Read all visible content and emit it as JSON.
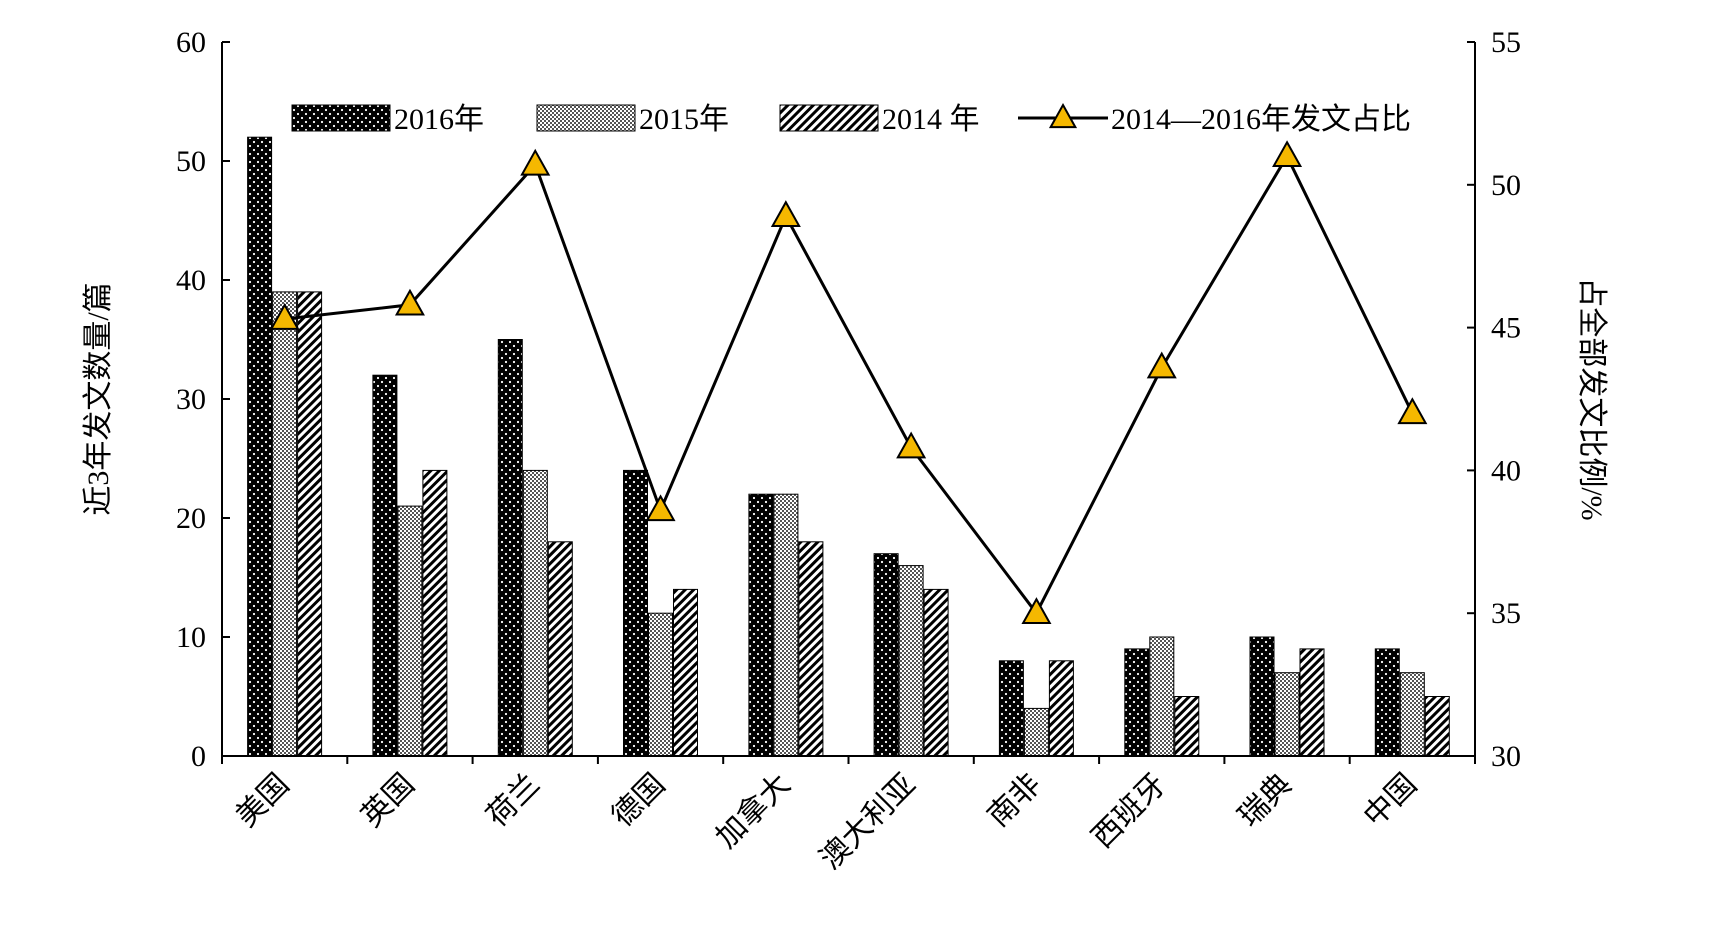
{
  "chart_data": {
    "type": "bar",
    "categories": [
      "美国",
      "英国",
      "荷兰",
      "德国",
      "加拿大",
      "澳大利亚",
      "南非",
      "西班牙",
      "瑞典",
      "中国"
    ],
    "series": [
      {
        "name": "2016年",
        "type": "bar",
        "axis": "left",
        "pattern": "dots",
        "values": [
          52,
          32,
          35,
          24,
          22,
          17,
          8,
          9,
          10,
          9
        ]
      },
      {
        "name": "2015年",
        "type": "bar",
        "axis": "left",
        "pattern": "checker",
        "values": [
          39,
          21,
          24,
          12,
          22,
          16,
          4,
          10,
          7,
          7
        ]
      },
      {
        "name": "2014 年",
        "type": "bar",
        "axis": "left",
        "pattern": "diagonal",
        "values": [
          39,
          24,
          18,
          14,
          18,
          14,
          8,
          5,
          9,
          5
        ]
      },
      {
        "name": "2014—2016年发文占比",
        "type": "line",
        "axis": "right",
        "marker": "triangle",
        "values": [
          45.3,
          45.8,
          50.7,
          38.6,
          48.9,
          40.8,
          35.0,
          43.6,
          51.0,
          42.0
        ]
      }
    ],
    "ylabel": "近3年发文数量/篇",
    "ylabel_right": "占全部发文比例/%",
    "ylim": [
      0,
      60
    ],
    "ylim_right": [
      30,
      55
    ],
    "yticks": [
      0,
      10,
      20,
      30,
      40,
      50,
      60
    ],
    "yticks_right": [
      30,
      35,
      40,
      45,
      50,
      55
    ],
    "grid": false,
    "legend": "top",
    "colors": {
      "marker_fill": "#f5b800",
      "line": "#000000",
      "bar_dark": "#000000"
    }
  }
}
